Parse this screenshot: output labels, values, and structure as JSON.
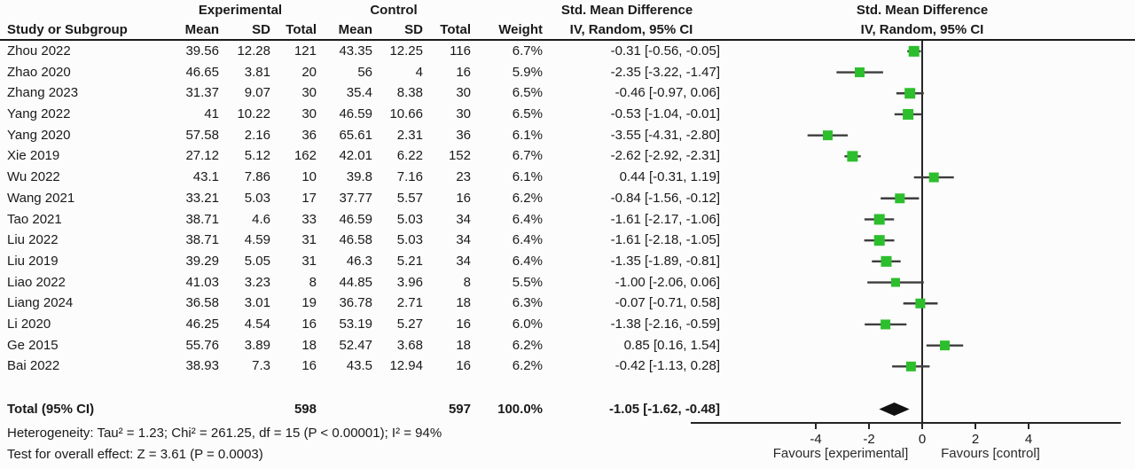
{
  "header": {
    "group1": "Experimental",
    "group2": "Control",
    "effect_title_left": "Std. Mean Difference",
    "effect_title_right": "Std. Mean Difference",
    "columns": [
      "Study or Subgroup",
      "Mean",
      "SD",
      "Total",
      "Mean",
      "SD",
      "Total",
      "Weight",
      "IV, Random, 95% CI"
    ],
    "plot_subtitle": "IV, Random, 95% CI"
  },
  "chart_data": {
    "type": "forest",
    "effect_measure": "Std. Mean Difference",
    "model": "IV, Random, 95% CI",
    "studies": [
      {
        "study": "Zhou 2022",
        "exp_mean": "39.56",
        "exp_sd": "12.28",
        "exp_total": "121",
        "ctrl_mean": "43.35",
        "ctrl_sd": "12.25",
        "ctrl_total": "116",
        "weight": "6.7%",
        "ci_text": "-0.31 [-0.56, -0.05]",
        "est": -0.31,
        "lo": -0.56,
        "hi": -0.05
      },
      {
        "study": "Zhao 2020",
        "exp_mean": "46.65",
        "exp_sd": "3.81",
        "exp_total": "20",
        "ctrl_mean": "56",
        "ctrl_sd": "4",
        "ctrl_total": "16",
        "weight": "5.9%",
        "ci_text": "-2.35 [-3.22, -1.47]",
        "est": -2.35,
        "lo": -3.22,
        "hi": -1.47
      },
      {
        "study": "Zhang 2023",
        "exp_mean": "31.37",
        "exp_sd": "9.07",
        "exp_total": "30",
        "ctrl_mean": "35.4",
        "ctrl_sd": "8.38",
        "ctrl_total": "30",
        "weight": "6.5%",
        "ci_text": "-0.46 [-0.97, 0.06]",
        "est": -0.46,
        "lo": -0.97,
        "hi": 0.06
      },
      {
        "study": "Yang 2022",
        "exp_mean": "41",
        "exp_sd": "10.22",
        "exp_total": "30",
        "ctrl_mean": "46.59",
        "ctrl_sd": "10.66",
        "ctrl_total": "30",
        "weight": "6.5%",
        "ci_text": "-0.53 [-1.04, -0.01]",
        "est": -0.53,
        "lo": -1.04,
        "hi": -0.01
      },
      {
        "study": "Yang 2020",
        "exp_mean": "57.58",
        "exp_sd": "2.16",
        "exp_total": "36",
        "ctrl_mean": "65.61",
        "ctrl_sd": "2.31",
        "ctrl_total": "36",
        "weight": "6.1%",
        "ci_text": "-3.55 [-4.31, -2.80]",
        "est": -3.55,
        "lo": -4.31,
        "hi": -2.8
      },
      {
        "study": "Xie 2019",
        "exp_mean": "27.12",
        "exp_sd": "5.12",
        "exp_total": "162",
        "ctrl_mean": "42.01",
        "ctrl_sd": "6.22",
        "ctrl_total": "152",
        "weight": "6.7%",
        "ci_text": "-2.62 [-2.92, -2.31]",
        "est": -2.62,
        "lo": -2.92,
        "hi": -2.31
      },
      {
        "study": "Wu 2022",
        "exp_mean": "43.1",
        "exp_sd": "7.86",
        "exp_total": "10",
        "ctrl_mean": "39.8",
        "ctrl_sd": "7.16",
        "ctrl_total": "23",
        "weight": "6.1%",
        "ci_text": "0.44 [-0.31, 1.19]",
        "est": 0.44,
        "lo": -0.31,
        "hi": 1.19
      },
      {
        "study": "Wang 2021",
        "exp_mean": "33.21",
        "exp_sd": "5.03",
        "exp_total": "17",
        "ctrl_mean": "37.77",
        "ctrl_sd": "5.57",
        "ctrl_total": "16",
        "weight": "6.2%",
        "ci_text": "-0.84 [-1.56, -0.12]",
        "est": -0.84,
        "lo": -1.56,
        "hi": -0.12
      },
      {
        "study": "Tao 2021",
        "exp_mean": "38.71",
        "exp_sd": "4.6",
        "exp_total": "33",
        "ctrl_mean": "46.59",
        "ctrl_sd": "5.03",
        "ctrl_total": "34",
        "weight": "6.4%",
        "ci_text": "-1.61 [-2.17, -1.06]",
        "est": -1.61,
        "lo": -2.17,
        "hi": -1.06
      },
      {
        "study": "Liu 2022",
        "exp_mean": "38.71",
        "exp_sd": "4.59",
        "exp_total": "31",
        "ctrl_mean": "46.58",
        "ctrl_sd": "5.03",
        "ctrl_total": "34",
        "weight": "6.4%",
        "ci_text": "-1.61 [-2.18, -1.05]",
        "est": -1.61,
        "lo": -2.18,
        "hi": -1.05
      },
      {
        "study": "Liu 2019",
        "exp_mean": "39.29",
        "exp_sd": "5.05",
        "exp_total": "31",
        "ctrl_mean": "46.3",
        "ctrl_sd": "5.21",
        "ctrl_total": "34",
        "weight": "6.4%",
        "ci_text": "-1.35 [-1.89, -0.81]",
        "est": -1.35,
        "lo": -1.89,
        "hi": -0.81
      },
      {
        "study": "Liao 2022",
        "exp_mean": "41.03",
        "exp_sd": "3.23",
        "exp_total": "8",
        "ctrl_mean": "44.85",
        "ctrl_sd": "3.96",
        "ctrl_total": "8",
        "weight": "5.5%",
        "ci_text": "-1.00 [-2.06, 0.06]",
        "est": -1.0,
        "lo": -2.06,
        "hi": 0.06
      },
      {
        "study": "Liang 2024",
        "exp_mean": "36.58",
        "exp_sd": "3.01",
        "exp_total": "19",
        "ctrl_mean": "36.78",
        "ctrl_sd": "2.71",
        "ctrl_total": "18",
        "weight": "6.3%",
        "ci_text": "-0.07 [-0.71, 0.58]",
        "est": -0.07,
        "lo": -0.71,
        "hi": 0.58
      },
      {
        "study": "Li 2020",
        "exp_mean": "46.25",
        "exp_sd": "4.54",
        "exp_total": "16",
        "ctrl_mean": "53.19",
        "ctrl_sd": "5.27",
        "ctrl_total": "16",
        "weight": "6.0%",
        "ci_text": "-1.38 [-2.16, -0.59]",
        "est": -1.38,
        "lo": -2.16,
        "hi": -0.59
      },
      {
        "study": "Ge 2015",
        "exp_mean": "55.76",
        "exp_sd": "3.89",
        "exp_total": "18",
        "ctrl_mean": "52.47",
        "ctrl_sd": "3.68",
        "ctrl_total": "18",
        "weight": "6.2%",
        "ci_text": "0.85 [0.16, 1.54]",
        "est": 0.85,
        "lo": 0.16,
        "hi": 1.54
      },
      {
        "study": "Bai 2022",
        "exp_mean": "38.93",
        "exp_sd": "7.3",
        "exp_total": "16",
        "ctrl_mean": "43.5",
        "ctrl_sd": "12.94",
        "ctrl_total": "16",
        "weight": "6.2%",
        "ci_text": "-0.42 [-1.13, 0.28]",
        "est": -0.42,
        "lo": -1.13,
        "hi": 0.28
      }
    ],
    "total": {
      "label": "Total (95% CI)",
      "exp_total": "598",
      "ctrl_total": "597",
      "weight": "100.0%",
      "ci_text": "-1.05 [-1.62, -0.48]",
      "est": -1.05,
      "lo": -1.62,
      "hi": -0.48
    },
    "heterogeneity": "Heterogeneity: Tau² = 1.23; Chi² = 261.25, df = 15 (P < 0.00001); I² = 94%",
    "overall_effect": "Test for overall effect: Z = 3.61 (P = 0.0003)",
    "axis": {
      "ticks": [
        -4,
        -2,
        0,
        2,
        4
      ],
      "min": -4,
      "max": 4
    },
    "favours_left": "Favours [experimental]",
    "favours_right": "Favours [control]",
    "marker_color": "#2dbe2d",
    "line_color": "#3d3d3d",
    "axis_color": "#252525",
    "diamond_color": "#111111"
  }
}
